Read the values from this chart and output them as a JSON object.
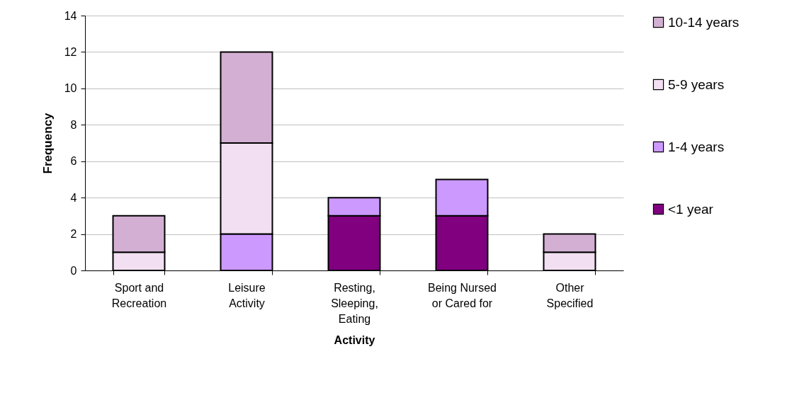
{
  "chart_data": {
    "type": "bar",
    "stacked": true,
    "xlabel": "Activity",
    "ylabel": "Frequency",
    "categories": [
      "Sport and\nRecreation",
      "Leisure\nActivity",
      "Resting,\nSleeping,\nEating",
      "Being Nursed\nor Cared for",
      "Other\nSpecified"
    ],
    "series": [
      {
        "name": "<1 year",
        "color": "#800080",
        "values": [
          0,
          0,
          3,
          3,
          0
        ]
      },
      {
        "name": "1-4 years",
        "color": "#cc99ff",
        "values": [
          0,
          2,
          1,
          2,
          0
        ]
      },
      {
        "name": "5-9 years",
        "color": "#f2e0f2",
        "values": [
          1,
          5,
          0,
          0,
          1
        ]
      },
      {
        "name": "10-14 years",
        "color": "#d3b0d3",
        "values": [
          2,
          5,
          0,
          0,
          1
        ]
      }
    ],
    "ylim": [
      0,
      14
    ],
    "yticks": [
      0,
      2,
      4,
      6,
      8,
      10,
      12,
      14
    ],
    "grid": "y",
    "legend": "right"
  }
}
